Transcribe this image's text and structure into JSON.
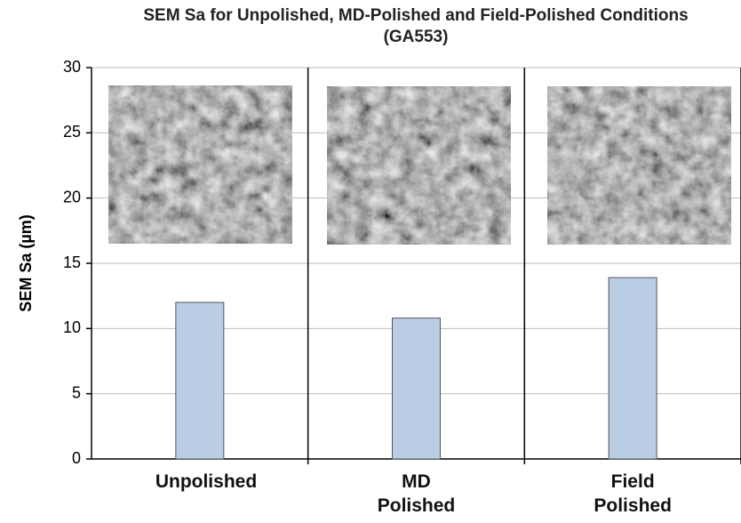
{
  "chart_data": {
    "type": "bar",
    "title": "SEM Sa for Unpolished, MD-Polished and Field-Polished Conditions (GA553)",
    "y_label": "SEM Sa (µm)",
    "categories": [
      "Unpolished",
      "MD Polished",
      "Field Polished"
    ],
    "values": [
      12.0,
      10.8,
      13.9
    ],
    "color": "#b9cde5",
    "ylim": [
      0,
      30
    ],
    "yticks": [
      0,
      5,
      10,
      15,
      20,
      25,
      30
    ],
    "grid": true
  }
}
